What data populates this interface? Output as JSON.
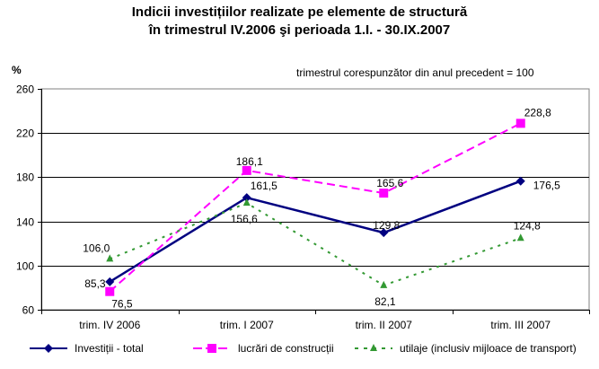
{
  "chart_data": {
    "type": "line",
    "title": "Indicii investițiilor realizate pe elemente de structură",
    "title_line2": "în trimestrul IV.2006 şi perioada 1.I. -  30.IX.2007",
    "subtitle": "trimestrul corespunzător din anul precedent = 100",
    "xlabel": "",
    "ylabel": "%",
    "ylim": [
      60,
      260
    ],
    "yticks": [
      60,
      100,
      140,
      180,
      220,
      260
    ],
    "ytick_labels": [
      "60",
      "100",
      "140",
      "180",
      "220",
      "260"
    ],
    "grid": true,
    "categories": [
      "trim. IV 2006",
      "trim. I 2007",
      "trim. II 2007",
      "trim. III 2007"
    ],
    "legend_position": "bottom",
    "series": [
      {
        "name": "Investiții - total",
        "values": [
          85.3,
          161.5,
          129.8,
          176.5
        ],
        "labels": [
          "85,3",
          "161,5",
          "129,8",
          "176,5"
        ],
        "color": "#000080",
        "line_style": "solid",
        "marker": "diamond"
      },
      {
        "name": "lucrări de construcții",
        "values": [
          76.5,
          186.1,
          165.6,
          228.8
        ],
        "labels": [
          "76,5",
          "186,1",
          "165,6",
          "228,8"
        ],
        "color": "#FF00FF",
        "line_style": "dashed",
        "marker": "square"
      },
      {
        "name": "utilaje (inclusiv mijloace de transport)",
        "values": [
          106.0,
          156.6,
          82.1,
          124.8
        ],
        "labels": [
          "106,0",
          "156,6",
          "82,1",
          "124,8"
        ],
        "color": "#339933",
        "line_style": "dotted",
        "marker": "triangle"
      }
    ]
  }
}
